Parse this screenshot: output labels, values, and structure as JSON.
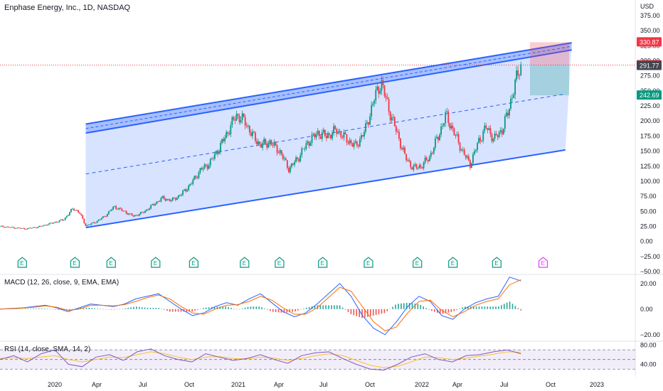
{
  "header": {
    "title": "Enphase Energy, Inc., 1D, NASDAQ",
    "currency": "USD"
  },
  "chart_data": {
    "type": "candlestick",
    "symbol": "Enphase Energy, Inc., 1D, NASDAQ",
    "currency": "USD",
    "x_ticks": [
      "2020",
      "Apr",
      "Jul",
      "Oct",
      "2021",
      "Apr",
      "Jul",
      "Oct",
      "2022",
      "Apr",
      "Jul",
      "Oct",
      "2023"
    ],
    "y_ticks": [
      "375.00",
      "350.00",
      "325.00",
      "300.00",
      "275.00",
      "250.00",
      "225.00",
      "200.00",
      "175.00",
      "150.00",
      "125.00",
      "100.00",
      "75.00",
      "50.00",
      "25.00",
      "0.00",
      "−25.00",
      "−50.00"
    ],
    "ylim": [
      -50,
      375
    ],
    "price_labels": [
      {
        "text": "330.87",
        "color": "#f23645",
        "value": 330.87
      },
      {
        "text": "292.94",
        "color": "#f23645",
        "value": 292.94
      },
      {
        "text": "291.77",
        "color": "#434651",
        "value": 291.77
      },
      {
        "text": "242.69",
        "color": "#089981",
        "value": 242.69
      }
    ],
    "close_series": [
      {
        "t": 0.0,
        "v": 25
      },
      {
        "t": 0.02,
        "v": 23
      },
      {
        "t": 0.04,
        "v": 21
      },
      {
        "t": 0.06,
        "v": 24
      },
      {
        "t": 0.08,
        "v": 30
      },
      {
        "t": 0.1,
        "v": 36
      },
      {
        "t": 0.115,
        "v": 55
      },
      {
        "t": 0.125,
        "v": 48
      },
      {
        "t": 0.135,
        "v": 26
      },
      {
        "t": 0.15,
        "v": 32
      },
      {
        "t": 0.165,
        "v": 42
      },
      {
        "t": 0.18,
        "v": 58
      },
      {
        "t": 0.195,
        "v": 50
      },
      {
        "t": 0.21,
        "v": 42
      },
      {
        "t": 0.225,
        "v": 48
      },
      {
        "t": 0.24,
        "v": 60
      },
      {
        "t": 0.255,
        "v": 72
      },
      {
        "t": 0.27,
        "v": 68
      },
      {
        "t": 0.285,
        "v": 78
      },
      {
        "t": 0.3,
        "v": 95
      },
      {
        "t": 0.315,
        "v": 118
      },
      {
        "t": 0.33,
        "v": 130
      },
      {
        "t": 0.345,
        "v": 155
      },
      {
        "t": 0.36,
        "v": 185
      },
      {
        "t": 0.372,
        "v": 210
      },
      {
        "t": 0.385,
        "v": 200
      },
      {
        "t": 0.398,
        "v": 175
      },
      {
        "t": 0.41,
        "v": 160
      },
      {
        "t": 0.425,
        "v": 165
      },
      {
        "t": 0.44,
        "v": 150
      },
      {
        "t": 0.455,
        "v": 120
      },
      {
        "t": 0.47,
        "v": 140
      },
      {
        "t": 0.485,
        "v": 165
      },
      {
        "t": 0.5,
        "v": 180
      },
      {
        "t": 0.515,
        "v": 175
      },
      {
        "t": 0.53,
        "v": 185
      },
      {
        "t": 0.545,
        "v": 170
      },
      {
        "t": 0.56,
        "v": 158
      },
      {
        "t": 0.575,
        "v": 185
      },
      {
        "t": 0.59,
        "v": 240
      },
      {
        "t": 0.6,
        "v": 265
      },
      {
        "t": 0.612,
        "v": 220
      },
      {
        "t": 0.625,
        "v": 180
      },
      {
        "t": 0.638,
        "v": 140
      },
      {
        "t": 0.65,
        "v": 122
      },
      {
        "t": 0.663,
        "v": 125
      },
      {
        "t": 0.676,
        "v": 140
      },
      {
        "t": 0.69,
        "v": 175
      },
      {
        "t": 0.702,
        "v": 210
      },
      {
        "t": 0.715,
        "v": 180
      },
      {
        "t": 0.728,
        "v": 150
      },
      {
        "t": 0.74,
        "v": 128
      },
      {
        "t": 0.753,
        "v": 165
      },
      {
        "t": 0.765,
        "v": 190
      },
      {
        "t": 0.778,
        "v": 170
      },
      {
        "t": 0.79,
        "v": 185
      },
      {
        "t": 0.8,
        "v": 215
      },
      {
        "t": 0.81,
        "v": 260
      },
      {
        "t": 0.82,
        "v": 292
      }
    ],
    "trend_channel": {
      "outer": {
        "start": {
          "t": 0.135,
          "v": 23
        },
        "end": {
          "t": 0.89,
          "v": 330
        }
      },
      "upper_band": [
        {
          "start": {
            "t": 0.135,
            "v": 195
          },
          "end": {
            "t": 0.9,
            "v": 330
          }
        },
        {
          "start": {
            "t": 0.135,
            "v": 180
          },
          "end": {
            "t": 0.9,
            "v": 318
          }
        }
      ],
      "lower_line": {
        "start": {
          "t": 0.135,
          "v": 23
        },
        "end": {
          "t": 0.89,
          "v": 152
        }
      },
      "median": {
        "start": {
          "t": 0.135,
          "v": 112
        },
        "end": {
          "t": 0.89,
          "v": 245
        }
      }
    },
    "position": {
      "entry": 292.94,
      "stop": 330.87,
      "target": 242.69
    },
    "earnings_markers": [
      {
        "label": "E",
        "t": 0.035
      },
      {
        "label": "E",
        "t": 0.118
      },
      {
        "label": "E",
        "t": 0.175
      },
      {
        "label": "E",
        "t": 0.245
      },
      {
        "label": "E",
        "t": 0.305
      },
      {
        "label": "E",
        "t": 0.385
      },
      {
        "label": "E",
        "t": 0.44
      },
      {
        "label": "E",
        "t": 0.508
      },
      {
        "label": "E",
        "t": 0.58
      },
      {
        "label": "E",
        "t": 0.657
      },
      {
        "label": "E",
        "t": 0.713
      },
      {
        "label": "E",
        "t": 0.782
      },
      {
        "label": "E",
        "t": 0.855
      }
    ],
    "indicators": [
      {
        "name": "MACD (12, 26, close, 9, EMA, EMA)",
        "y_ticks": [
          "20.00",
          "0.00",
          "−20.00"
        ],
        "ylim": [
          -24,
          26
        ],
        "series": [
          {
            "values": [
              0,
              0.5,
              1,
              2,
              3,
              1,
              -2,
              1,
              4,
              3,
              2,
              4,
              8,
              10,
              12,
              6,
              0,
              -5,
              -3,
              2,
              5,
              3,
              8,
              12,
              5,
              -2,
              -6,
              -3,
              4,
              12,
              20,
              10,
              -5,
              -15,
              -20,
              -10,
              2,
              10,
              6,
              -5,
              -8,
              0,
              5,
              8,
              10,
              25,
              22
            ]
          },
          {
            "values": [
              0,
              0.3,
              0.8,
              1.5,
              2.5,
              1.5,
              -1,
              0,
              3,
              3,
              2.5,
              3.5,
              6,
              9,
              11,
              8,
              2,
              -3,
              -4,
              0,
              3,
              3.5,
              6,
              10,
              7,
              1,
              -4,
              -4,
              1,
              9,
              17,
              14,
              2,
              -10,
              -17,
              -14,
              -3,
              6,
              7,
              -1,
              -6,
              -2,
              3,
              6,
              8,
              19,
              23
            ]
          }
        ]
      },
      {
        "name": "RSI (14, close, SMA, 14, 2)",
        "y_ticks": [
          "80.00",
          "40.00"
        ],
        "ylim": [
          20,
          85
        ],
        "bands": [
          70,
          50,
          30
        ],
        "series": [
          {
            "values": [
              50,
              58,
              45,
              62,
              70,
              40,
              35,
              55,
              60,
              48,
              66,
              72,
              58,
              50,
              45,
              62,
              55,
              48,
              52,
              60,
              50,
              42,
              58,
              64,
              66,
              52,
              40,
              30,
              28,
              40,
              55,
              62,
              50,
              45,
              58,
              60,
              66,
              70,
              62
            ]
          },
          {
            "values": [
              52,
              54,
              52,
              55,
              58,
              50,
              45,
              50,
              55,
              54,
              60,
              66,
              62,
              55,
              50,
              55,
              56,
              52,
              51,
              55,
              53,
              48,
              52,
              58,
              62,
              58,
              48,
              38,
              33,
              36,
              45,
              55,
              54,
              50,
              53,
              57,
              61,
              66,
              65
            ]
          }
        ]
      }
    ]
  }
}
